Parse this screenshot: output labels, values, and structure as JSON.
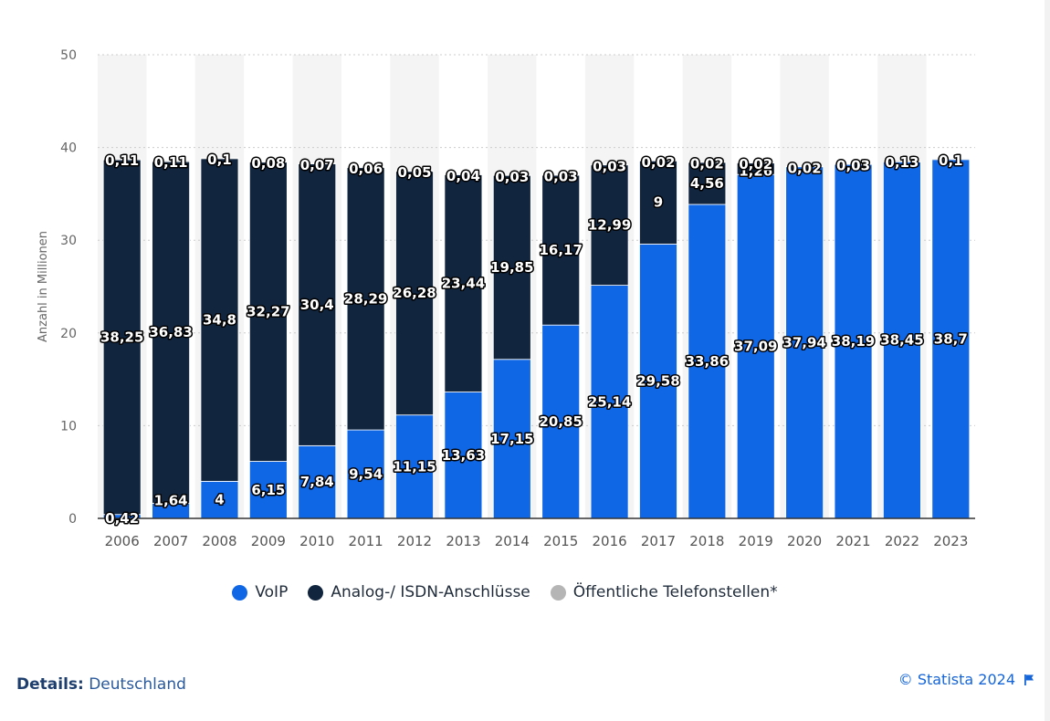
{
  "colors": {
    "voip": "#0f67e6",
    "analog": "#11253f",
    "public": "#b5b5b5",
    "grid": "#cccccc",
    "band": "#f4f4f4"
  },
  "chart_data": {
    "type": "bar",
    "stacked": true,
    "title": "",
    "xlabel": "",
    "ylabel": "Anzahl in Millionen",
    "ylim": [
      0,
      50
    ],
    "yticks": [
      0,
      10,
      20,
      30,
      40,
      50
    ],
    "grid": true,
    "legend_position": "bottom",
    "categories": [
      "2006",
      "2007",
      "2008",
      "2009",
      "2010",
      "2011",
      "2012",
      "2013",
      "2014",
      "2015",
      "2016",
      "2017",
      "2018",
      "2019",
      "2020",
      "2021",
      "2022",
      "2023"
    ],
    "series": [
      {
        "name": "VoIP",
        "values": [
          0.42,
          1.64,
          4,
          6.15,
          7.84,
          9.54,
          11.15,
          13.63,
          17.15,
          20.85,
          25.14,
          29.58,
          33.86,
          37.09,
          37.94,
          38.19,
          38.45,
          38.7
        ],
        "labels": [
          "0,42",
          "1,64",
          "4",
          "6,15",
          "7,84",
          "9,54",
          "11,15",
          "13,63",
          "17,15",
          "20,85",
          "25,14",
          "29,58",
          "33,86",
          "37,09",
          "37,94",
          "38,19",
          "38,45",
          "38,7"
        ]
      },
      {
        "name": "Analog-/ ISDN-Anschlüsse",
        "values": [
          38.25,
          36.83,
          34.8,
          32.27,
          30.4,
          28.29,
          26.28,
          23.44,
          19.85,
          16.17,
          12.99,
          9,
          4.56,
          1.26,
          0,
          0,
          0,
          0
        ],
        "labels": [
          "38,25",
          "36,83",
          "34,8",
          "32,27",
          "30,4",
          "28,29",
          "26,28",
          "23,44",
          "19,85",
          "16,17",
          "12,99",
          "9",
          "4,56",
          "1,26",
          "",
          "",
          "",
          ""
        ]
      },
      {
        "name": "Öffentliche Telefonstellen*",
        "values": [
          0.11,
          0.11,
          0.1,
          0.08,
          0.07,
          0.06,
          0.05,
          0.04,
          0.03,
          0.03,
          0.03,
          0.02,
          0.02,
          0.02,
          0.02,
          0.03,
          0.13,
          0.1
        ],
        "labels": [
          "0,11",
          "0,11",
          "0,1",
          "0,08",
          "0,07",
          "0,06",
          "0,05",
          "0,04",
          "0,03",
          "0,03",
          "0,03",
          "0,02",
          "0,02",
          "0,02",
          "0,02",
          "0,03",
          "0,13",
          "0,1"
        ]
      }
    ]
  },
  "footer": {
    "details_label": "Details:",
    "details_value": "Deutschland",
    "copyright": "© Statista 2024"
  }
}
